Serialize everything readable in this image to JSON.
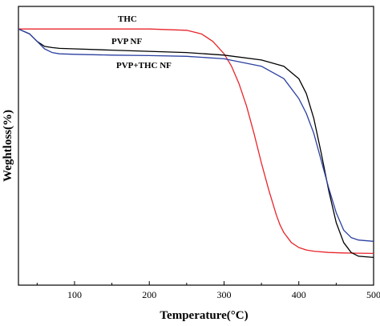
{
  "chart_data": {
    "type": "line",
    "title": "",
    "xlabel": "Temperature(°C)",
    "ylabel": "Weghtloss(%)",
    "xlim": [
      25,
      500
    ],
    "ylim": [
      0,
      100
    ],
    "y_ticks_labeled": false,
    "x_ticks": [
      100,
      200,
      300,
      400,
      500
    ],
    "grid": false,
    "legend": "inline labels near curves",
    "series": [
      {
        "name": "THC",
        "color": "#e8242b",
        "x": [
          25,
          100,
          200,
          250,
          270,
          285,
          300,
          310,
          320,
          330,
          340,
          350,
          360,
          370,
          375,
          380,
          390,
          400,
          410,
          420,
          440,
          460,
          480,
          500
        ],
        "y": [
          98,
          98,
          98,
          97.5,
          96,
          93,
          88,
          83,
          76,
          67,
          56,
          44,
          33,
          23,
          19,
          16,
          12,
          10,
          9,
          8.5,
          8,
          7.8,
          7.7,
          7.6
        ]
      },
      {
        "name": "PVP NF",
        "color": "#000000",
        "x": [
          25,
          40,
          50,
          60,
          70,
          80,
          100,
          150,
          200,
          250,
          300,
          350,
          380,
          400,
          410,
          420,
          430,
          440,
          450,
          460,
          470,
          480,
          500
        ],
        "y": [
          98,
          96,
          93,
          91,
          90.5,
          90.2,
          90,
          89.5,
          89,
          88.5,
          87.5,
          85.5,
          83,
          78,
          72,
          62,
          48,
          33,
          20,
          12,
          8,
          6.5,
          6
        ]
      },
      {
        "name": "PVP+THC NF",
        "color": "#2a3fa0",
        "x": [
          25,
          40,
          50,
          60,
          70,
          80,
          100,
          150,
          200,
          250,
          300,
          350,
          380,
          400,
          410,
          420,
          430,
          440,
          450,
          460,
          470,
          480,
          500
        ],
        "y": [
          98,
          96,
          93,
          90,
          88.5,
          88,
          87.8,
          87.5,
          87.3,
          87,
          86,
          83,
          78,
          70,
          64,
          56,
          45,
          34,
          24,
          17,
          14,
          13,
          12.5
        ]
      }
    ]
  }
}
